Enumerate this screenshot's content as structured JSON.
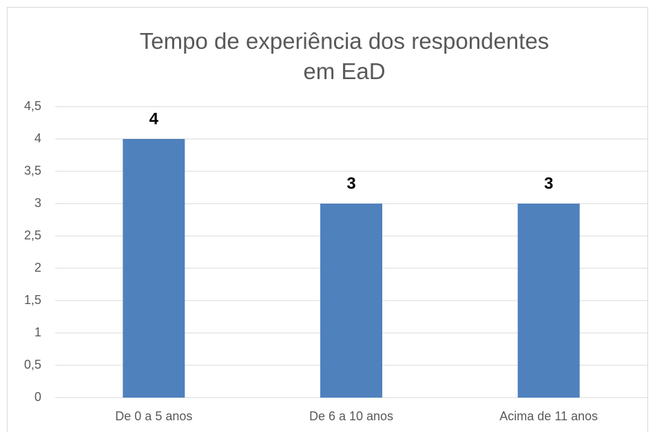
{
  "chart_data": {
    "type": "bar",
    "title": "Tempo de experiência dos respondentes em EaD",
    "categories": [
      "De 0 a 5 anos",
      "De 6 a 10 anos",
      "Acima de 11 anos"
    ],
    "values": [
      4,
      3,
      3
    ],
    "color": "#4f81bd",
    "ylim": [
      0,
      4.5
    ],
    "yticks": [
      0,
      {
        "value": 0.5,
        "label": "0,5"
      },
      1,
      {
        "value": 1.5,
        "label": "1,5"
      },
      2,
      {
        "value": 2.5,
        "label": "2,5"
      },
      3,
      {
        "value": 3.5,
        "label": "3,5"
      },
      4,
      {
        "value": 4.5,
        "label": "4,5"
      }
    ],
    "grid": true
  }
}
